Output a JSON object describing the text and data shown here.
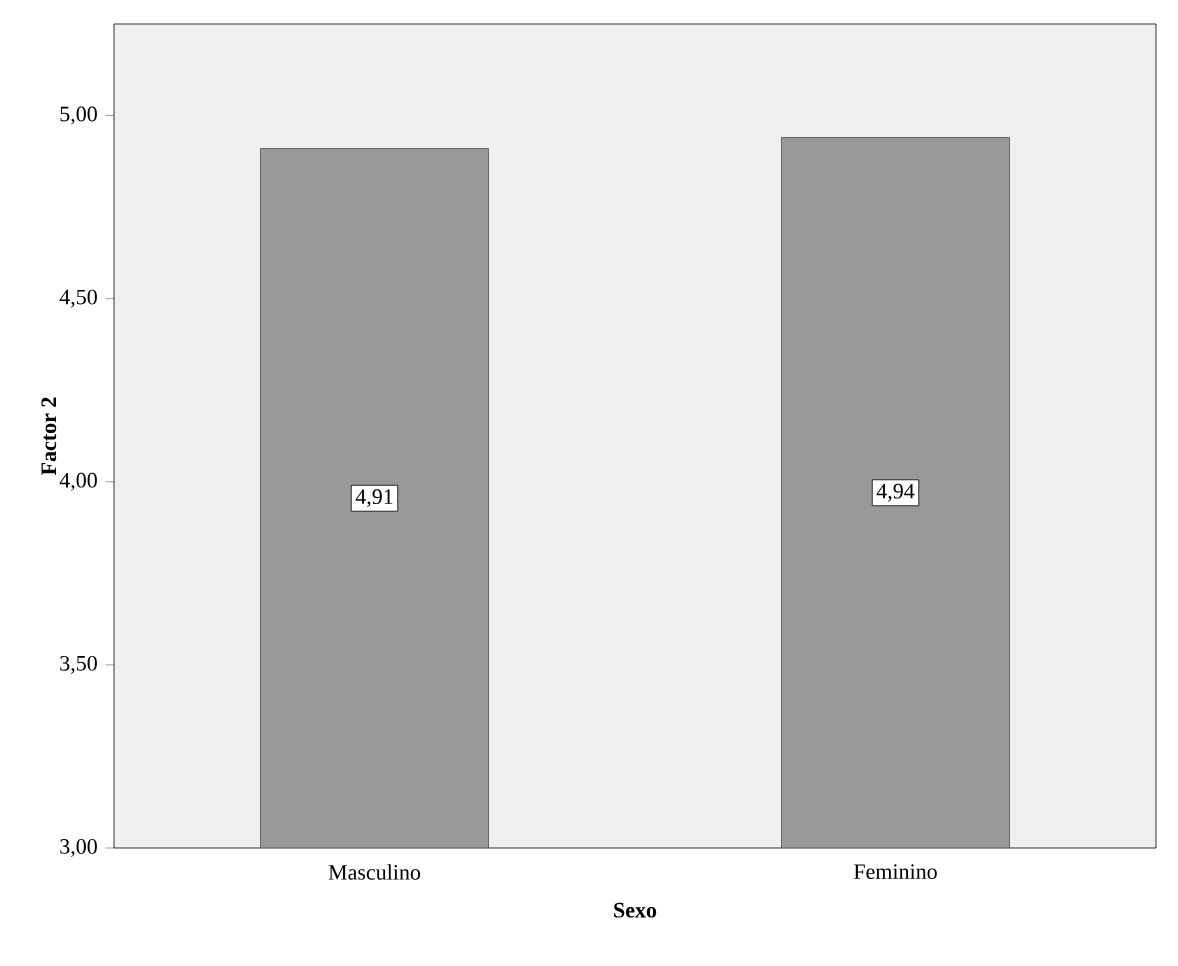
{
  "chart_data": {
    "type": "bar",
    "xlabel": "Sexo",
    "ylabel": "Factor 2",
    "categories": [
      "Masculino",
      "Feminino"
    ],
    "values": [
      4.91,
      4.94
    ],
    "value_labels": [
      "4,91",
      "4,94"
    ],
    "color": "#999999",
    "ylim": [
      3,
      5.25
    ],
    "yticks": [
      {
        "value": 3,
        "label": "3,00"
      },
      {
        "value": 3.5,
        "label": "3,50"
      },
      {
        "value": 4,
        "label": "4,00"
      },
      {
        "value": 4.5,
        "label": "4,50"
      },
      {
        "value": 5,
        "label": "5,00"
      }
    ],
    "grid": false
  }
}
